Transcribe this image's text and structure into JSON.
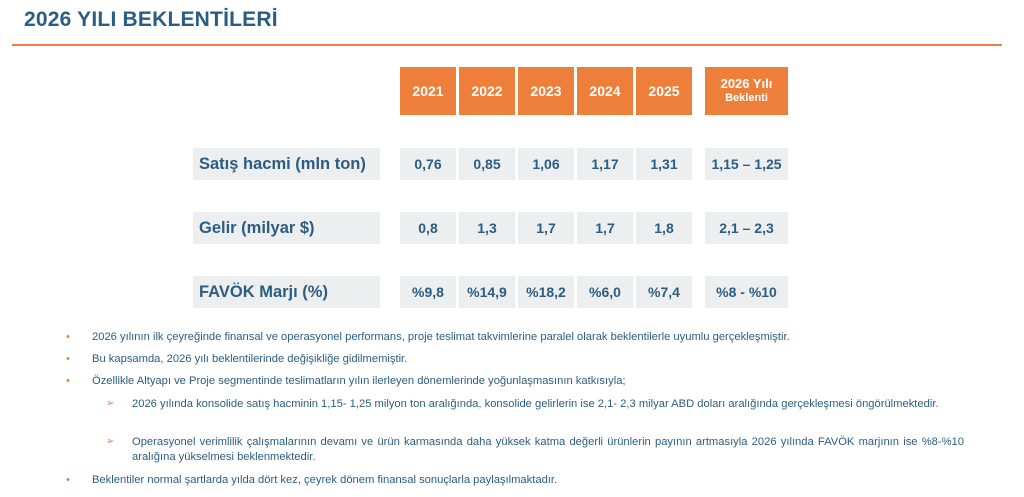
{
  "title": "2026 YILI BEKLENTİLERİ",
  "table": {
    "years": [
      "2021",
      "2022",
      "2023",
      "2024",
      "2025"
    ],
    "expectation_header": {
      "line1": "2026 Yılı",
      "line2": "Beklenti"
    },
    "rows": [
      {
        "label": "Satış hacmi (mln ton)",
        "values": [
          "0,76",
          "0,85",
          "1,06",
          "1,17",
          "1,31"
        ],
        "expectation": "1,15 – 1,25"
      },
      {
        "label": "Gelir (milyar $)",
        "values": [
          "0,8",
          "1,3",
          "1,7",
          "1,7",
          "1,8"
        ],
        "expectation": "2,1 – 2,3"
      },
      {
        "label": "FAVÖK Marjı (%)",
        "values": [
          "%9,8",
          "%14,9",
          "%18,2",
          "%6,0",
          "%7,4"
        ],
        "expectation": "%8 - %10"
      }
    ]
  },
  "bullets": [
    "2026 yılının ilk çeyreğinde finansal ve operasyonel performans, proje teslimat takvimlerine paralel olarak beklentilerle uyumlu gerçekleşmiştir.",
    "Bu kapsamda, 2026 yılı beklentilerinde değişikliğe gidilmemiştir.",
    "Özellikle Altyapı ve Proje segmentinde teslimatların yılın ilerleyen dönemlerinde yoğunlaşmasının katkısıyla;",
    "Beklentiler normal şartlarda yılda dört kez, çeyrek dönem finansal sonuçlarla paylaşılmaktadır."
  ],
  "sub_bullets": [
    "2026 yılında konsolide satış hacminin 1,15- 1,25 milyon ton aralığında, konsolide gelirlerin ise 2,1- 2,3 milyar ABD doları aralığında gerçekleşmesi öngörülmektedir.",
    "Operasyonel verimlilik çalışmalarının devamı ve ürün karmasında daha yüksek katma değerli ürünlerin payının artmasıyla 2026 yılında FAVÖK marjının ise %8-%10 aralığına yükselmesi beklenmektedir."
  ],
  "colors": {
    "accent": "#ee7f3b",
    "text": "#2b5d82",
    "cell_bg": "#edeef0"
  }
}
